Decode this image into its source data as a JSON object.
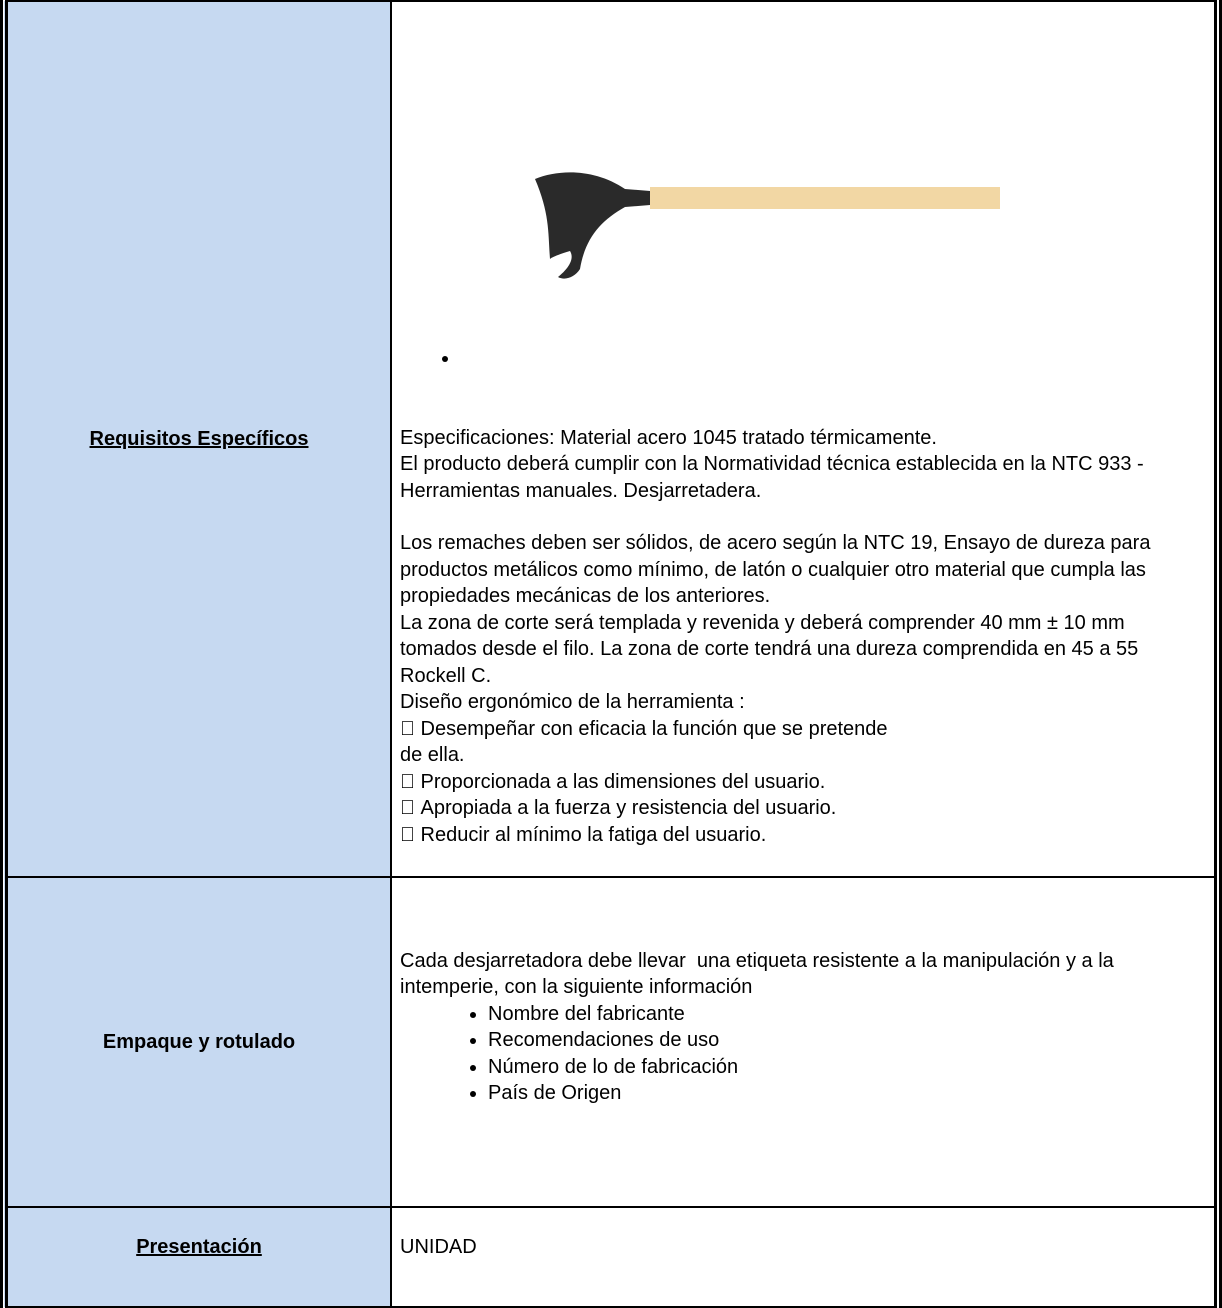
{
  "table": {
    "rows": [
      {
        "label": "Requisitos Específicos",
        "paragraphs": [
          "Especificaciones: Material acero 1045 tratado térmicamente.",
          "El producto deberá cumplir con la Normatividad técnica establecida en la NTC 933 - Herramientas manuales. Desjarretadera.",
          "Los remaches deben ser sólidos, de acero según la NTC 19, Ensayo de dureza para productos metálicos como mínimo, de latón o cualquier otro material que cumpla las propiedades mecánicas de los anteriores.",
          "La zona de corte será templada y revenida y deberá comprender 40 mm ± 10 mm tomados desde el filo. La zona de corte tendrá una dureza comprendida en 45 a 55 Rockell C.",
          "Diseño ergonómico de la herramienta :",
          " Desempeñar con eficacia la función que se pretende",
          "de ella.",
          " Proporcionada a las dimensiones del usuario.",
          " Apropiada a la fuerza y resistencia del usuario.",
          " Reducir al mínimo la fatiga del usuario."
        ]
      },
      {
        "label": "Empaque  y rotulado",
        "paragraphs": [
          "Cada desjarretadora debe llevar  una etiqueta resistente a la manipulación y a la intemperie, con la siguiente información"
        ],
        "items": [
          "Nombre del fabricante",
          "Recomendaciones de uso",
          "Número de lo de fabricación",
          "País de Origen"
        ]
      },
      {
        "label": "Presentación",
        "paragraphs": [
          "UNIDAD"
        ]
      }
    ]
  }
}
